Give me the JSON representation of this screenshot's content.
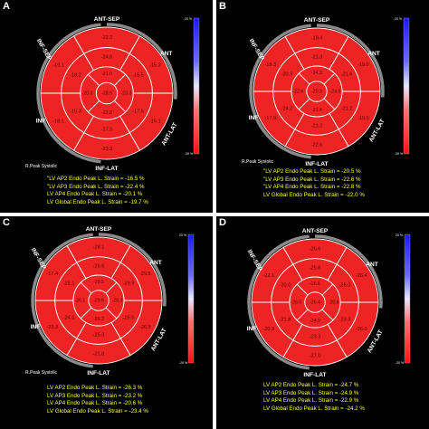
{
  "colors": {
    "segment_fill": "#ee2424",
    "segment_stroke": "#ffffff",
    "value_text": "#550000",
    "orientation_text": "#ffffff",
    "info_text": "#ffff33",
    "arc": "#8a8a8a",
    "panel_bg": "#000000"
  },
  "panels": [
    {
      "letter": "A",
      "orientation": {
        "top": "ANT-SEP",
        "upper_right": "ANT",
        "lower_right": "ANT-LAT",
        "bottom": "INF-LAT",
        "lower_left": "INF",
        "upper_left": "INF-SEP"
      },
      "values": {
        "basal": [
          "-22.2",
          "-15.3",
          "-15.1",
          "-23.9",
          "-18.1",
          "-19.1"
        ],
        "mid": [
          "-24.6",
          "-15.5",
          "-17.5",
          "-17.5",
          "-15.3",
          "-18.2"
        ],
        "apical": [
          "-21.0",
          "-23.3",
          "-22.8",
          "-20.3"
        ],
        "apex": "-28.9"
      },
      "scale": {
        "top": "20 %",
        "bottom": "-20 %"
      },
      "peak_label": "R.Peak Systolic",
      "info": [
        "\"LV AP2 Endo Peak L. Strain = -16.5 %",
        "\"LV AP3 Endo Peak L. Strain = -22.4 %",
        "LV AP4 Endo Peak L. Strain = -20.1 %",
        "LV Global Endo Peak L. Strain = -19.7 %"
      ]
    },
    {
      "letter": "B",
      "orientation": {
        "top": "ANT-SEP",
        "upper_right": "ANT",
        "lower_right": "ANT-LAT",
        "bottom": "INF-LAT",
        "lower_left": "INF",
        "upper_left": "INF-SEP"
      },
      "values": {
        "basal": [
          "-19.4",
          "-19.0",
          "-19.5",
          "-22.6",
          "-17.9",
          "-19.3"
        ],
        "mid": [
          "-21.3",
          "-21.6",
          "-21.2",
          "-21.2",
          "-24.2",
          "-20.9"
        ],
        "apical": [
          "-24.3",
          "-24.6",
          "-23.4",
          "-22.6"
        ],
        "apex": "-20.3"
      },
      "scale": {
        "top": "20 %",
        "bottom": "-20 %"
      },
      "peak_label": "R.Peak Systolic",
      "info": [
        "\"LV AP2 Endo Peak L. Strain = -20.5 %",
        "\"LV AP3 Endo Peak L. Strain = -22.6 %",
        "\"LV AP4 Endo Peak L. Strain = -22.8 %",
        "LV Global Endo Peak L. Strain = -22.0 %"
      ]
    },
    {
      "letter": "C",
      "orientation": {
        "top": "ANT-SEP",
        "upper_right": "ANT",
        "lower_right": "ANT-LAT",
        "bottom": "INF-LAT",
        "lower_left": "INF",
        "upper_left": "INF-SEP"
      },
      "values": {
        "basal": [
          "-28.1",
          "-29.5",
          "-26.9",
          "-21.8",
          "-23.3",
          "-17.4"
        ],
        "mid": [
          "-26.6",
          "-29.9",
          "-25.5",
          "-25.3",
          "-24.0",
          "-22.1"
        ],
        "apical": [
          "-29.5",
          "-28.3",
          "-26.2",
          "-26.1"
        ],
        "apex": "-29.6"
      },
      "scale": {
        "top": "20 %",
        "bottom": "-20 %"
      },
      "peak_label": "R.Peak Systolic",
      "info": [
        "LV AP2 Endo Peak L. Strain = -26.3 %",
        "LV AP3 Endo Peak L. Strain = -23.2 %",
        "LV AP4 Endo Peak L. Strain = -20.6 %",
        "LV Global Endo Peak L. Strain = -23.4 %"
      ]
    },
    {
      "letter": "D",
      "orientation": {
        "top": "ANT-SEP",
        "upper_right": "ANT",
        "lower_right": "ANT-LAT",
        "bottom": "INF-LAT",
        "lower_left": "INF",
        "upper_left": "INF-SEP"
      },
      "values": {
        "basal": [
          "-26.6",
          "-26.4",
          "-26.0",
          "-27.0",
          "-20.9",
          "-22.1"
        ],
        "mid": [
          "-25.8",
          "-25.0",
          "-23.3",
          "-23.3",
          "-21.8",
          "-20.0"
        ],
        "apical": [
          "-26.6",
          "-28.8",
          "-24.9",
          "-26.5"
        ],
        "apex": "-26.4"
      },
      "scale": {
        "top": "20 %",
        "bottom": "-20 %"
      },
      "peak_label": "R.Peak Systolic",
      "info": [
        "LV AP2 Endo Peak L. Strain = -24.7 %",
        "LV AP3 Endo Peak L. Strain = -24.9 %",
        "LV AP4 Endo Peak L. Strain = -22.9 %",
        "LV Global Endo Peak L. Strain = -24.2 %"
      ]
    }
  ]
}
